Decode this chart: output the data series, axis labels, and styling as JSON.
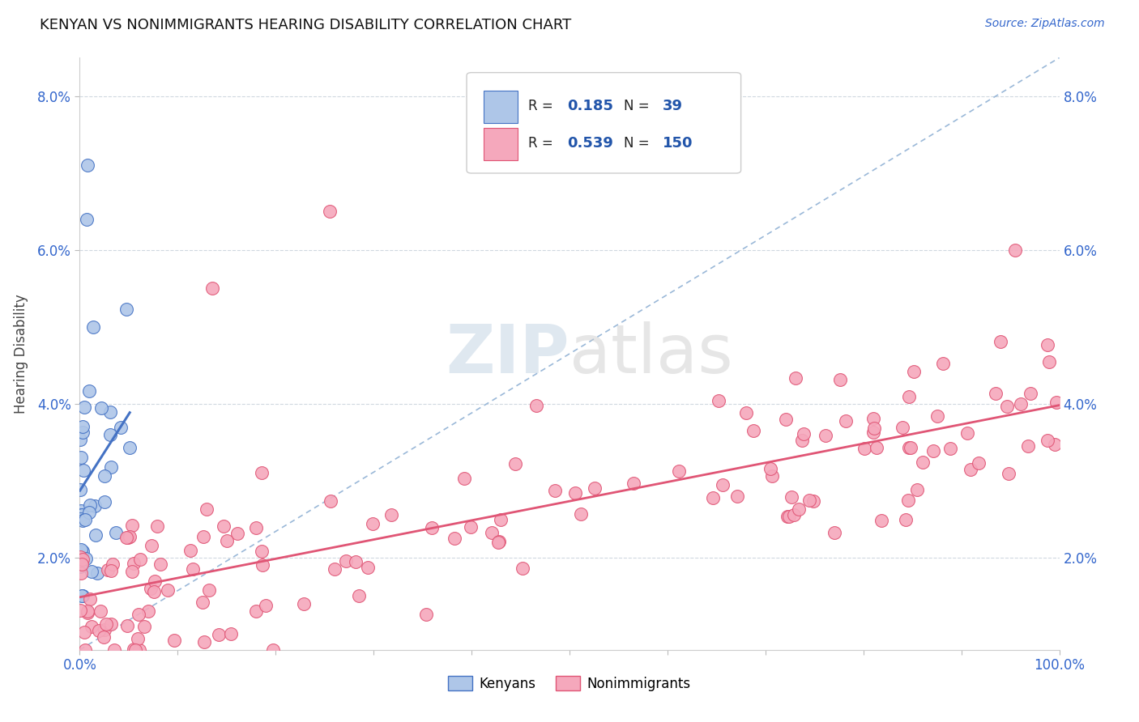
{
  "title": "KENYAN VS NONIMMIGRANTS HEARING DISABILITY CORRELATION CHART",
  "source_text": "Source: ZipAtlas.com",
  "ylabel": "Hearing Disability",
  "xlim": [
    0.0,
    1.0
  ],
  "ylim": [
    0.008,
    0.085
  ],
  "ytick_vals": [
    0.02,
    0.04,
    0.06,
    0.08
  ],
  "ytick_labels": [
    "2.0%",
    "4.0%",
    "6.0%",
    "8.0%"
  ],
  "kenyan_R": 0.185,
  "kenyan_N": 39,
  "nonimm_R": 0.539,
  "nonimm_N": 150,
  "kenyan_color": "#aec6e8",
  "nonimm_color": "#f5a8bc",
  "kenyan_line_color": "#4472c4",
  "nonimm_line_color": "#e05575",
  "ref_line_color": "#9ab8d8",
  "grid_color": "#d0d8e0",
  "background_color": "#ffffff",
  "legend_text_color": "#222222",
  "legend_num_color": "#2255aa",
  "title_color": "#111111",
  "source_color": "#3366cc",
  "axis_tick_color": "#3366cc"
}
